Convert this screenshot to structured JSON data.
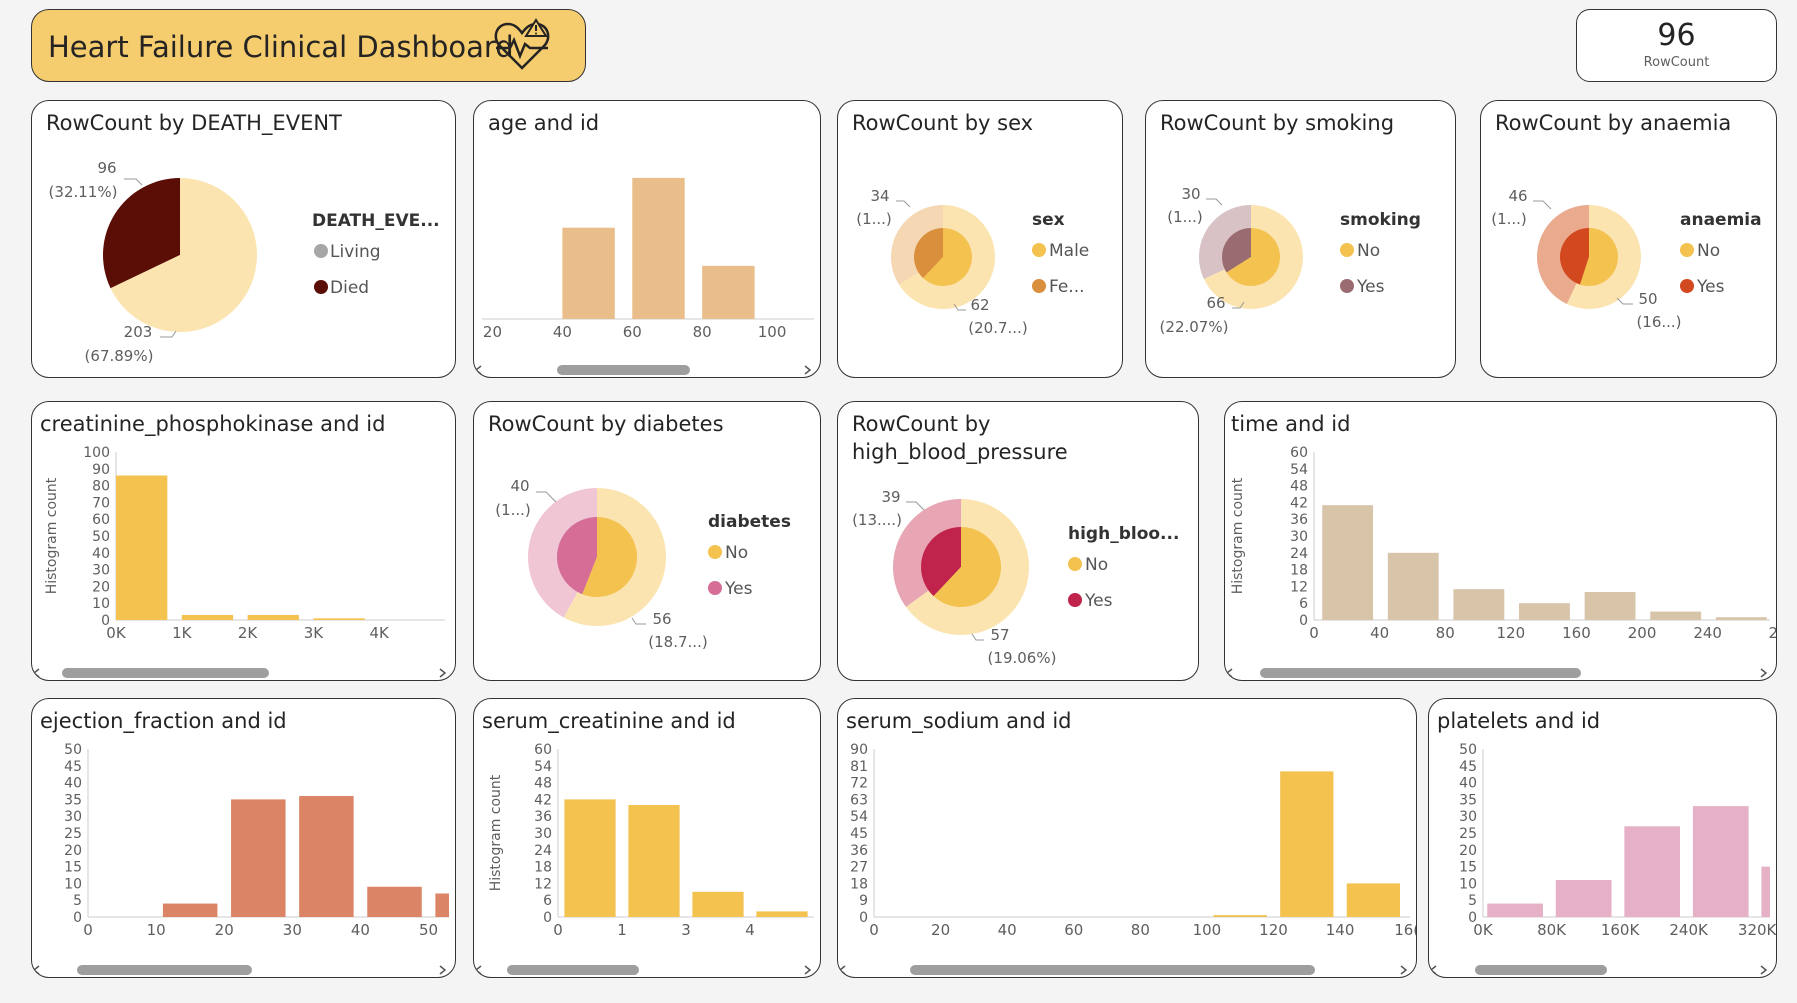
{
  "header": {
    "title": "Heart Failure Clinical Dashboard",
    "icon": "heart-pulse-warning-icon"
  },
  "kpi": {
    "value": "96",
    "label": "RowCount"
  },
  "colors": {
    "cream": "#fbe4b0",
    "orange": "#f3c24f",
    "maroon": "#5a0e06",
    "gray": "#a6a6a6",
    "tan": "#e9be8a",
    "beige": "#d8c4a8",
    "salmon": "#dc8566",
    "pink": "#e6b0c6"
  },
  "chart_data": [
    {
      "id": "death",
      "type": "pie",
      "title": "RowCount by DEATH_EVENT",
      "legend_title": "DEATH_EVE...",
      "slices": [
        {
          "name": "Living",
          "value": 203,
          "label": "203",
          "pct": "(67.89%)",
          "color": "#fbe4b0",
          "legend_color": "#a6a6a6"
        },
        {
          "name": "Died",
          "value": 96,
          "label": "96",
          "pct": "(32.11%)",
          "color": "#5a0e06",
          "legend_color": "#5a0e06"
        }
      ]
    },
    {
      "id": "age",
      "type": "bar",
      "title": "age and id",
      "bars": [
        {
          "x0": 40,
          "x1": 55,
          "y": 55
        },
        {
          "x0": 60,
          "x1": 75,
          "y": 85
        },
        {
          "x0": 80,
          "x1": 95,
          "y": 32
        }
      ],
      "xlim": [
        17,
        112
      ],
      "ylim": [
        0,
        100
      ],
      "xticks": [
        20,
        40,
        60,
        80,
        100
      ],
      "yticks": [],
      "ylabel": "",
      "color": "#e9be8a"
    },
    {
      "id": "sex",
      "type": "donut",
      "title": "RowCount by sex",
      "legend_title": "sex",
      "outer": [
        {
          "name": "Male",
          "value": 66,
          "color": "#fbe4b0"
        },
        {
          "name": "Female",
          "value": 34,
          "color": "#f5d7b3"
        }
      ],
      "inner": [
        {
          "name": "Male",
          "value": 62,
          "color": "#f3c24f"
        },
        {
          "name": "Female",
          "value": 38,
          "color": "#d98f3c"
        }
      ],
      "legend": [
        {
          "label": "Male",
          "color": "#f3c24f"
        },
        {
          "label": "Fe...",
          "color": "#d98f3c"
        }
      ],
      "labels": [
        {
          "value": "34",
          "pct": "(1...)"
        },
        {
          "value": "62",
          "pct": "(20.7...)"
        }
      ]
    },
    {
      "id": "smoking",
      "type": "donut",
      "title": "RowCount by smoking",
      "legend_title": "smoking",
      "outer": [
        {
          "name": "No",
          "value": 68,
          "color": "#fbe4b0"
        },
        {
          "name": "Yes",
          "value": 32,
          "color": "#d8c2c5"
        }
      ],
      "inner": [
        {
          "name": "No",
          "value": 66,
          "color": "#f3c24f"
        },
        {
          "name": "Yes",
          "value": 34,
          "color": "#9a6b70"
        }
      ],
      "legend": [
        {
          "label": "No",
          "color": "#f3c24f"
        },
        {
          "label": "Yes",
          "color": "#9a6b70"
        }
      ],
      "labels": [
        {
          "value": "30",
          "pct": "(1...)"
        },
        {
          "value": "66",
          "pct": "(22.07%)"
        }
      ]
    },
    {
      "id": "anaemia",
      "type": "donut",
      "title": "RowCount by anaemia",
      "legend_title": "anaemia",
      "outer": [
        {
          "name": "No",
          "value": 57,
          "color": "#fbe4b0"
        },
        {
          "name": "Yes",
          "value": 43,
          "color": "#e9aa8e"
        }
      ],
      "inner": [
        {
          "name": "No",
          "value": 55,
          "color": "#f3c24f"
        },
        {
          "name": "Yes",
          "value": 45,
          "color": "#d2481f"
        }
      ],
      "legend": [
        {
          "label": "No",
          "color": "#f3c24f"
        },
        {
          "label": "Yes",
          "color": "#d2481f"
        }
      ],
      "labels": [
        {
          "value": "46",
          "pct": "(1...)"
        },
        {
          "value": "50",
          "pct": "(16...)"
        }
      ]
    },
    {
      "id": "cpk",
      "type": "bar",
      "title": "creatinine_phosphokinase and id",
      "bars": [
        {
          "x0": 0,
          "x1": 780,
          "y": 86
        },
        {
          "x0": 1000,
          "x1": 1780,
          "y": 3
        },
        {
          "x0": 2000,
          "x1": 2780,
          "y": 3
        },
        {
          "x0": 3000,
          "x1": 3780,
          "y": 1
        }
      ],
      "xlim": [
        0,
        5000
      ],
      "ylim": [
        0,
        100
      ],
      "xticks": [
        "0K",
        "1K",
        "2K",
        "3K",
        "4K"
      ],
      "xtick_values": [
        0,
        1000,
        2000,
        3000,
        4000
      ],
      "yticks": [
        0,
        10,
        20,
        30,
        40,
        50,
        60,
        70,
        80,
        90,
        100
      ],
      "ylabel": "Histogram count",
      "color": "#f3c24f"
    },
    {
      "id": "diabetes",
      "type": "donut",
      "title": "RowCount by diabetes",
      "legend_title": "diabetes",
      "outer": [
        {
          "name": "No",
          "value": 58,
          "color": "#fbe4b0"
        },
        {
          "name": "Yes",
          "value": 42,
          "color": "#f0c6d4"
        }
      ],
      "inner": [
        {
          "name": "No",
          "value": 56,
          "color": "#f3c24f"
        },
        {
          "name": "Yes",
          "value": 44,
          "color": "#d56d96"
        }
      ],
      "legend": [
        {
          "label": "No",
          "color": "#f3c24f"
        },
        {
          "label": "Yes",
          "color": "#d56d96"
        }
      ],
      "labels": [
        {
          "value": "40",
          "pct": "(1...)"
        },
        {
          "value": "56",
          "pct": "(18.7...)"
        }
      ]
    },
    {
      "id": "hbp",
      "type": "donut",
      "title": "RowCount by high_blood_pressure",
      "legend_title": "high_bloo...",
      "outer": [
        {
          "name": "No",
          "value": 65,
          "color": "#fbe4b0"
        },
        {
          "name": "Yes",
          "value": 35,
          "color": "#e8a5b4"
        }
      ],
      "inner": [
        {
          "name": "No",
          "value": 62,
          "color": "#f3c24f"
        },
        {
          "name": "Yes",
          "value": 38,
          "color": "#c0234b"
        }
      ],
      "legend": [
        {
          "label": "No",
          "color": "#f3c24f"
        },
        {
          "label": "Yes",
          "color": "#c0234b"
        }
      ],
      "labels": [
        {
          "value": "39",
          "pct": "(13....)"
        },
        {
          "value": "57",
          "pct": "(19.06%)"
        }
      ]
    },
    {
      "id": "time",
      "type": "bar",
      "title": "time and id",
      "bars": [
        {
          "x0": 5,
          "x1": 36,
          "y": 41
        },
        {
          "x0": 45,
          "x1": 76,
          "y": 24
        },
        {
          "x0": 85,
          "x1": 116,
          "y": 11
        },
        {
          "x0": 125,
          "x1": 156,
          "y": 6
        },
        {
          "x0": 165,
          "x1": 196,
          "y": 10
        },
        {
          "x0": 205,
          "x1": 236,
          "y": 3
        },
        {
          "x0": 245,
          "x1": 276,
          "y": 1
        }
      ],
      "xlim": [
        0,
        278
      ],
      "ylim": [
        0,
        60
      ],
      "xticks": [
        0,
        40,
        80,
        120,
        160,
        200,
        240,
        "2"
      ],
      "xtick_values": [
        0,
        40,
        80,
        120,
        160,
        200,
        240,
        280
      ],
      "yticks": [
        0,
        6,
        12,
        18,
        24,
        30,
        36,
        42,
        48,
        54,
        60
      ],
      "ylabel": "Histogram count",
      "color": "#d8c4a8"
    },
    {
      "id": "ef",
      "type": "bar",
      "title": "ejection_fraction and id",
      "bars": [
        {
          "x0": 11,
          "x1": 19,
          "y": 4
        },
        {
          "x0": 21,
          "x1": 29,
          "y": 35
        },
        {
          "x0": 31,
          "x1": 39,
          "y": 36
        },
        {
          "x0": 41,
          "x1": 49,
          "y": 9
        },
        {
          "x0": 51,
          "x1": 59,
          "y": 7
        }
      ],
      "xlim": [
        0,
        53
      ],
      "ylim": [
        0,
        50
      ],
      "xticks": [
        0,
        10,
        20,
        30,
        40,
        50
      ],
      "yticks": [
        0,
        5,
        10,
        15,
        20,
        25,
        30,
        35,
        40,
        45,
        50
      ],
      "ylabel": "",
      "color": "#dc8566"
    },
    {
      "id": "sc",
      "type": "bar",
      "title": "serum_creatinine and id",
      "bars": [
        {
          "x0": 0.1,
          "x1": 0.9,
          "y": 42
        },
        {
          "x0": 1.1,
          "x1": 1.9,
          "y": 40
        },
        {
          "x0": 2.1,
          "x1": 2.9,
          "y": 9
        },
        {
          "x0": 3.1,
          "x1": 3.9,
          "y": 2
        }
      ],
      "xlim": [
        0,
        4
      ],
      "ylim": [
        0,
        60
      ],
      "xticks": [
        0,
        1,
        3,
        4
      ],
      "xtick_values": [
        0,
        1,
        2,
        3
      ],
      "yticks": [
        0,
        6,
        12,
        18,
        24,
        30,
        36,
        42,
        48,
        54,
        60
      ],
      "ylabel": "Histogram count",
      "color": "#f3c24f"
    },
    {
      "id": "na",
      "type": "bar",
      "title": "serum_sodium and id",
      "bars": [
        {
          "x0": 102,
          "x1": 118,
          "y": 1
        },
        {
          "x0": 122,
          "x1": 138,
          "y": 78
        },
        {
          "x0": 142,
          "x1": 158,
          "y": 18
        }
      ],
      "xlim": [
        0,
        161
      ],
      "ylim": [
        0,
        90
      ],
      "xticks": [
        0,
        20,
        40,
        60,
        80,
        100,
        120,
        140,
        "16("
      ],
      "xtick_values": [
        0,
        20,
        40,
        60,
        80,
        100,
        120,
        140,
        160
      ],
      "yticks": [
        0,
        9,
        18,
        27,
        36,
        45,
        54,
        63,
        72,
        81,
        90
      ],
      "ylabel": "",
      "color": "#f3c24f"
    },
    {
      "id": "platelets",
      "type": "bar",
      "title": "platelets and id",
      "bars": [
        {
          "x0": 5000,
          "x1": 70000,
          "y": 4
        },
        {
          "x0": 85000,
          "x1": 150000,
          "y": 11
        },
        {
          "x0": 165000,
          "x1": 230000,
          "y": 27
        },
        {
          "x0": 245000,
          "x1": 310000,
          "y": 33
        },
        {
          "x0": 325000,
          "x1": 390000,
          "y": 15
        }
      ],
      "xlim": [
        0,
        335000
      ],
      "ylim": [
        0,
        50
      ],
      "xticks": [
        "0K",
        "80K",
        "160K",
        "240K",
        "320K"
      ],
      "xtick_values": [
        0,
        80000,
        160000,
        240000,
        320000
      ],
      "yticks": [
        0,
        5,
        10,
        15,
        20,
        25,
        30,
        35,
        40,
        45,
        50
      ],
      "ylabel": "",
      "color": "#e6b0c6"
    }
  ]
}
